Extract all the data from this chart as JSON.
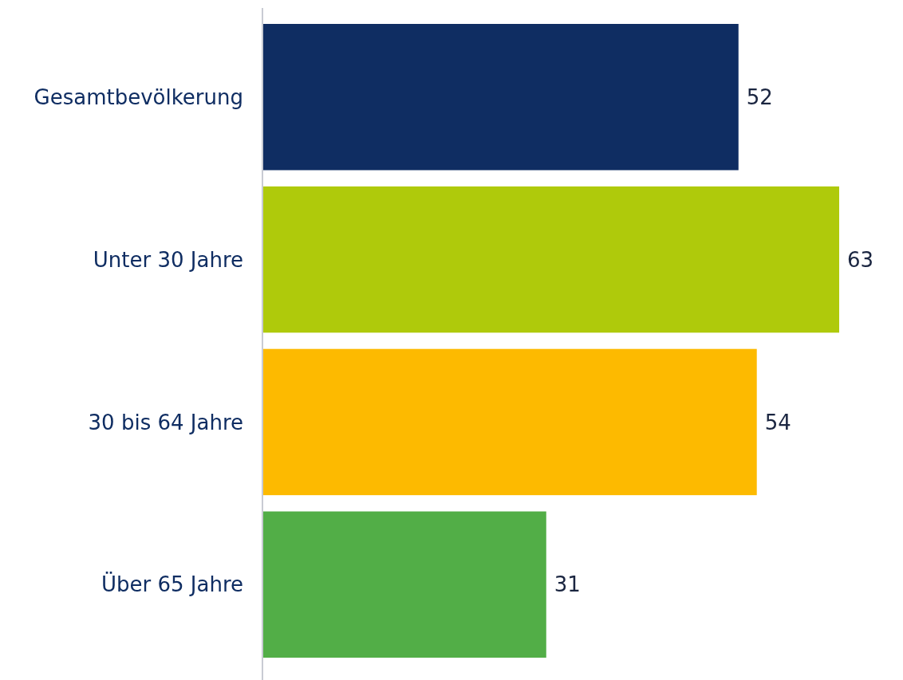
{
  "chart_data": {
    "type": "bar",
    "orientation": "horizontal",
    "categories": [
      "Gesamtbevölkerung",
      "Unter 30 Jahre",
      "30 bis 64 Jahre",
      "Über 65 Jahre"
    ],
    "values": [
      52,
      63,
      54,
      31
    ],
    "colors": [
      "#0f2d62",
      "#afca0b",
      "#fdba00",
      "#52ae47"
    ],
    "data_labels": true
  }
}
